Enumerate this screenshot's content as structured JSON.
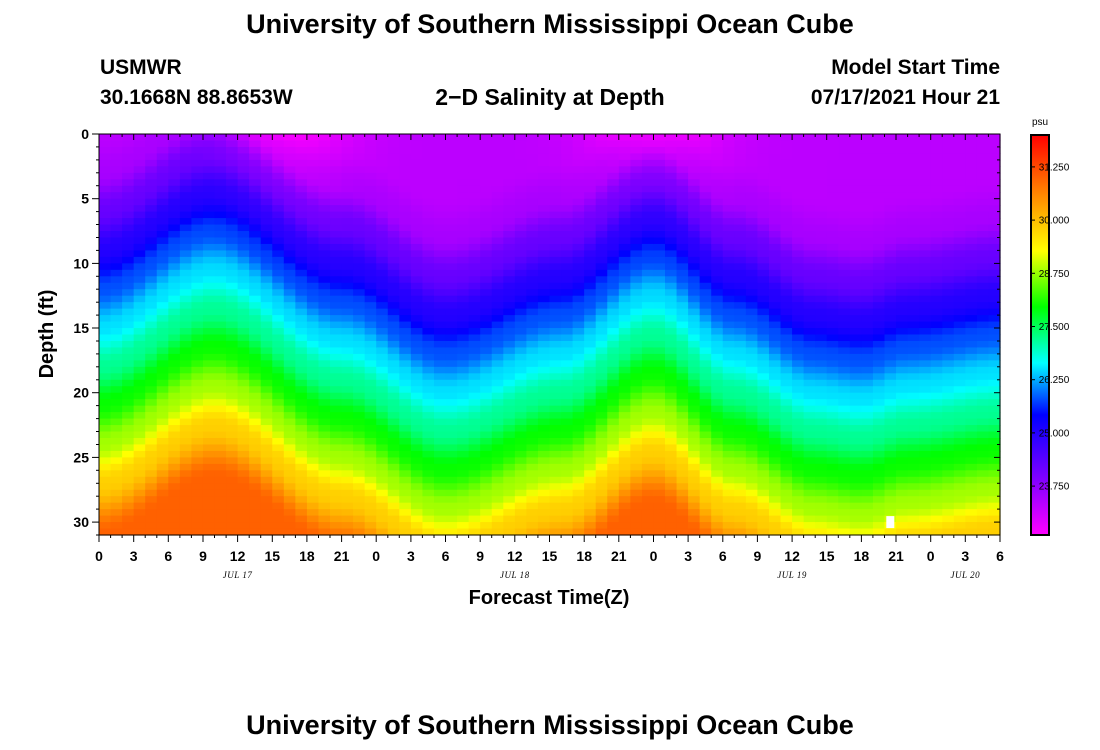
{
  "page": {
    "title_top": "University of Southern Mississippi Ocean Cube",
    "title_bottom": "University of Southern Mississippi Ocean Cube",
    "station_name": "USMWR",
    "station_coords": "30.1668N  88.8653W",
    "product_title": "2−D Salinity at Depth",
    "model_start_label": "Model Start Time",
    "model_start_value": "07/17/2021 Hour 21"
  },
  "chart_data": {
    "type": "heatmap",
    "title": "2-D Salinity at Depth",
    "xlabel": "Forecast Time(Z)",
    "ylabel": "Depth (ft)",
    "x_ticks": [
      "0",
      "3",
      "6",
      "9",
      "12",
      "15",
      "18",
      "21",
      "0",
      "3",
      "6",
      "9",
      "12",
      "15",
      "18",
      "21",
      "0",
      "3",
      "6",
      "9",
      "12",
      "15",
      "18",
      "21",
      "0",
      "3",
      "6"
    ],
    "x_range_hours": [
      0,
      78
    ],
    "day_labels": [
      {
        "label": "JUL 17",
        "hour": 12
      },
      {
        "label": "JUL 18",
        "hour": 36
      },
      {
        "label": "JUL 19",
        "hour": 60
      },
      {
        "label": "JUL 20",
        "hour": 75
      }
    ],
    "y_ticks": [
      0,
      5,
      10,
      15,
      20,
      25,
      30
    ],
    "ylim": [
      0,
      31
    ],
    "y_inverted": true,
    "colorbar": {
      "unit": "psu",
      "ticks": [
        "31.250",
        "30.000",
        "28.750",
        "27.500",
        "26.250",
        "25.000",
        "23.750"
      ],
      "range": [
        22.6,
        32.0
      ]
    },
    "salinity_profile": {
      "depth_ft": [
        0,
        3,
        6,
        9,
        12,
        15,
        18,
        21,
        24,
        27,
        31
      ],
      "surface_psu": [
        23.3,
        23.5,
        24.2,
        25.0,
        25.8,
        26.5,
        27.2,
        28.0,
        28.8,
        29.8,
        31.0
      ]
    },
    "isohaline_anchors": {
      "hours": [
        0,
        10,
        21,
        30,
        40,
        48,
        55,
        62,
        66,
        70,
        78
      ],
      "depth_shift_ft": [
        0,
        4.5,
        -1,
        -5,
        -2,
        2.5,
        -2,
        -5,
        -5.5,
        -4.5,
        -3.5
      ]
    },
    "surface_fresh_core_hours": [
      16,
      48
    ],
    "marker": {
      "hour": 68.5,
      "depth_ft": 30
    }
  }
}
